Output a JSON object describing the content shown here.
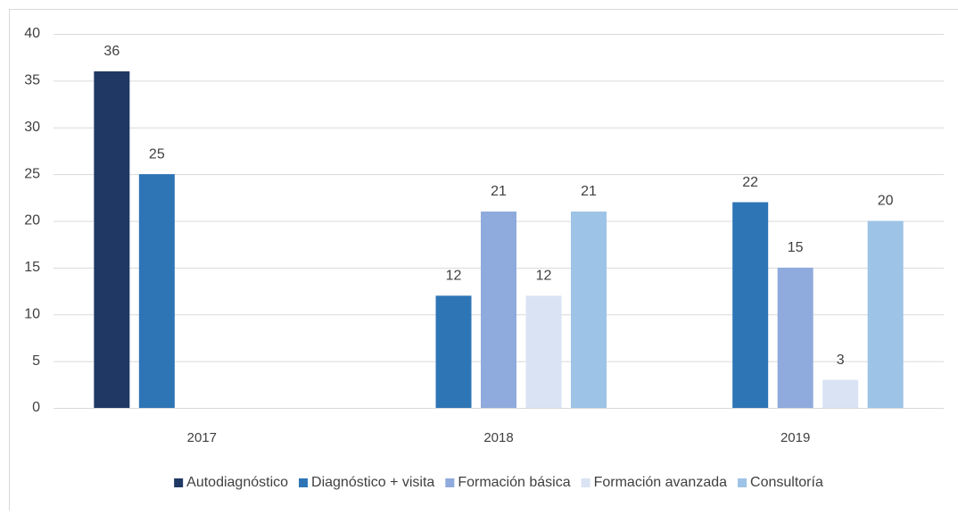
{
  "chart_data": {
    "type": "bar",
    "categories": [
      "2017",
      "2018",
      "2019"
    ],
    "series": [
      {
        "name": "Autodiagnóstico",
        "color": "#203864",
        "values": [
          36,
          null,
          null
        ]
      },
      {
        "name": "Diagnóstico + visita",
        "color": "#2e75b6",
        "values": [
          25,
          12,
          22
        ]
      },
      {
        "name": "Formación básica",
        "color": "#8faadc",
        "values": [
          null,
          21,
          15
        ]
      },
      {
        "name": "Formación avanzada",
        "color": "#dae3f3",
        "values": [
          null,
          12,
          3
        ]
      },
      {
        "name": "Consultoría",
        "color": "#9dc3e6",
        "values": [
          null,
          21,
          20
        ]
      }
    ],
    "ylim": [
      0,
      40
    ],
    "yticks": [
      0,
      5,
      10,
      15,
      20,
      25,
      30,
      35,
      40
    ],
    "grid": true,
    "legend": "bottom"
  }
}
